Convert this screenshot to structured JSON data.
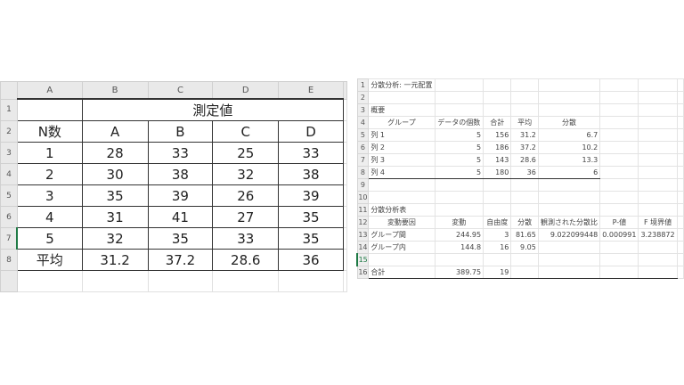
{
  "left_sheet": {
    "columns": [
      "A",
      "B",
      "C",
      "D",
      "E"
    ],
    "rows": [
      "1",
      "2",
      "3",
      "4",
      "5",
      "6",
      "7",
      "8"
    ],
    "title": "測定値",
    "header": [
      "N数",
      "A",
      "B",
      "C",
      "D"
    ],
    "data": [
      [
        "1",
        "28",
        "33",
        "25",
        "33"
      ],
      [
        "2",
        "30",
        "38",
        "32",
        "38"
      ],
      [
        "3",
        "35",
        "39",
        "26",
        "39"
      ],
      [
        "4",
        "31",
        "41",
        "27",
        "35"
      ],
      [
        "5",
        "32",
        "35",
        "33",
        "35"
      ]
    ],
    "mean_row": [
      "平均",
      "31.2",
      "37.2",
      "28.6",
      "36"
    ],
    "selected_row": "7"
  },
  "right_sheet": {
    "rows": [
      [
        "1",
        "分散分析: 一元配置",
        "",
        "",
        "",
        "",
        "",
        ""
      ],
      [
        "2",
        "",
        "",
        "",
        "",
        "",
        "",
        ""
      ],
      [
        "3",
        "概要",
        "",
        "",
        "",
        "",
        "",
        ""
      ],
      [
        "4",
        "グループ",
        "データの個数",
        "合計",
        "平均",
        "分散",
        "",
        ""
      ],
      [
        "5",
        "列 1",
        "5",
        "156",
        "31.2",
        "6.7",
        "",
        ""
      ],
      [
        "6",
        "列 2",
        "5",
        "186",
        "37.2",
        "10.2",
        "",
        ""
      ],
      [
        "7",
        "列 3",
        "5",
        "143",
        "28.6",
        "13.3",
        "",
        ""
      ],
      [
        "8",
        "列 4",
        "5",
        "180",
        "36",
        "6",
        "",
        ""
      ],
      [
        "9",
        "",
        "",
        "",
        "",
        "",
        "",
        ""
      ],
      [
        "10",
        "",
        "",
        "",
        "",
        "",
        "",
        ""
      ],
      [
        "11",
        "分散分析表",
        "",
        "",
        "",
        "",
        "",
        ""
      ],
      [
        "12",
        "変動要因",
        "変動",
        "自由度",
        "分散",
        "観測された分散比",
        "P-値",
        "F 境界値"
      ],
      [
        "13",
        "グループ間",
        "244.95",
        "3",
        "81.65",
        "9.022099448",
        "0.000991",
        "3.238872"
      ],
      [
        "14",
        "グループ内",
        "144.8",
        "16",
        "9.05",
        "",
        "",
        ""
      ],
      [
        "15",
        "",
        "",
        "",
        "",
        "",
        "",
        ""
      ],
      [
        "16",
        "合計",
        "389.75",
        "19",
        "",
        "",
        "",
        ""
      ]
    ],
    "selected_row": "15"
  }
}
